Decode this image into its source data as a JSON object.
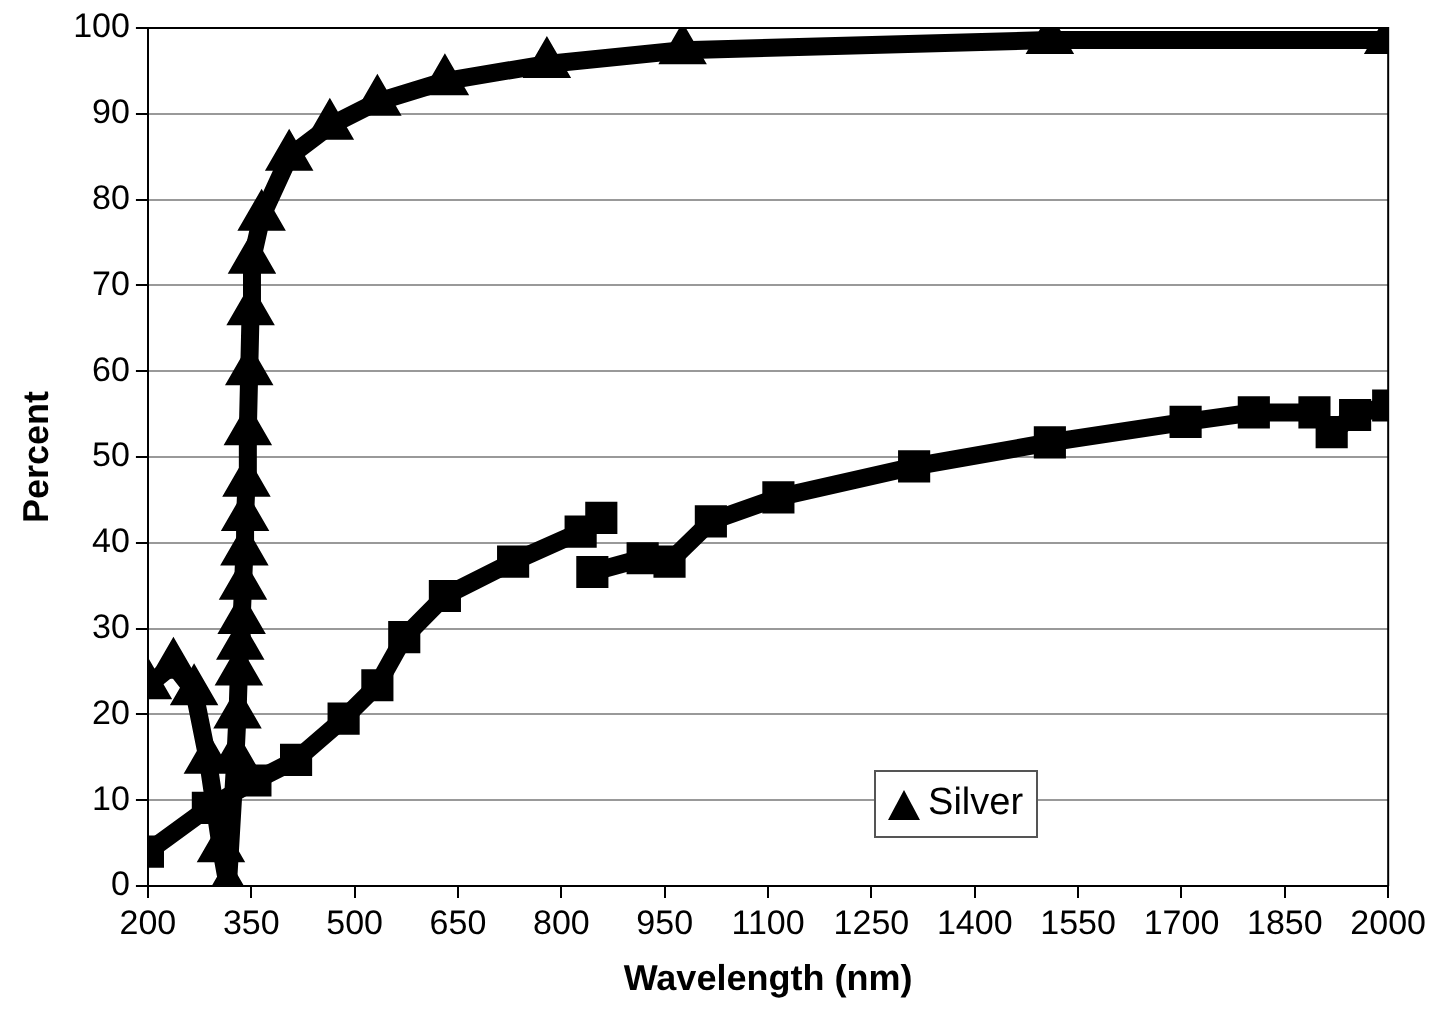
{
  "chart_data": {
    "type": "line",
    "xlabel": "Wavelength (nm)",
    "ylabel": "Percent",
    "xlim": [
      200,
      2000
    ],
    "xticks": [
      200,
      350,
      500,
      650,
      800,
      950,
      1100,
      1250,
      1400,
      1550,
      1700,
      1850,
      2000
    ],
    "ylim": [
      0,
      100
    ],
    "yticks": [
      0,
      10,
      20,
      30,
      40,
      50,
      60,
      70,
      80,
      90,
      100
    ],
    "grid": "y",
    "legend": "bottom",
    "line_style": "solid",
    "series": [
      {
        "color": "#000000",
        "marker": "square",
        "x": [
          200,
          287,
          356,
          415,
          484,
          533,
          572,
          631,
          730,
          828,
          858
        ],
        "values": [
          4,
          9.1,
          12.3,
          14.7,
          19.5,
          23.4,
          29,
          33.8,
          37.8,
          41.3,
          42.9
        ]
      },
      {
        "color": "#000000",
        "marker": "square",
        "x": [
          845,
          918,
          957,
          1017,
          1115,
          1312,
          1509,
          1706,
          1805,
          1893,
          1918,
          1952,
          2000
        ],
        "values": [
          36.6,
          38.2,
          37.8,
          42.5,
          45.3,
          48.9,
          51.7,
          54.1,
          55.2,
          55.2,
          52.9,
          54.9,
          56
        ]
      },
      {
        "name": "Silver",
        "color": "#000000",
        "marker": "triangle",
        "x": [
          200,
          237,
          267,
          287,
          306,
          316,
          327,
          330,
          332,
          334,
          336,
          338,
          340,
          341,
          343,
          345,
          347,
          349,
          351,
          365,
          405,
          464,
          533,
          631,
          779,
          976,
          1509,
          2000
        ],
        "values": [
          23.4,
          25.8,
          22.7,
          14.7,
          4.4,
          0,
          15,
          20,
          25,
          28,
          31,
          35,
          39,
          43,
          47,
          53,
          60,
          67,
          73,
          78,
          85,
          88.6,
          91.4,
          93.8,
          95.8,
          97.4,
          98.6,
          98.6
        ]
      }
    ]
  }
}
